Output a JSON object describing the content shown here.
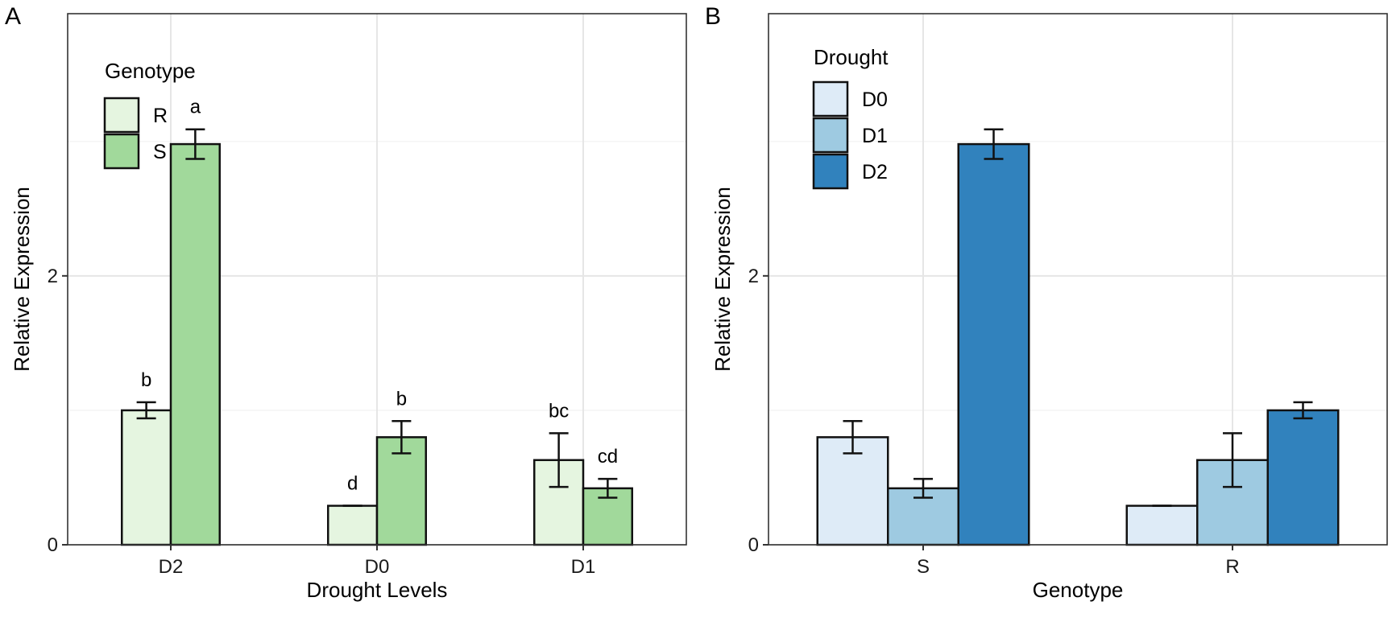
{
  "chart_data": [
    {
      "panel": "A",
      "type": "bar",
      "xlabel": "Drought Levels",
      "ylabel": "Relative Expression",
      "categories": [
        "D2",
        "D0",
        "D1"
      ],
      "ylim": [
        0,
        3.95
      ],
      "yticks": [
        0,
        2
      ],
      "grid": true,
      "legend": {
        "title": "Genotype",
        "position": "top-left"
      },
      "series": [
        {
          "name": "R",
          "color": "#e5f5e0",
          "values": [
            1.0,
            0.29,
            0.63
          ],
          "errors": [
            0.06,
            0.0,
            0.2
          ],
          "labels": [
            "b",
            "d",
            "bc"
          ]
        },
        {
          "name": "S",
          "color": "#a1d99b",
          "values": [
            2.98,
            0.8,
            0.42
          ],
          "errors": [
            0.11,
            0.12,
            0.07
          ],
          "labels": [
            "a",
            "b",
            "cd"
          ]
        }
      ]
    },
    {
      "panel": "B",
      "type": "bar",
      "xlabel": "Genotype",
      "ylabel": "Relative Expression",
      "categories": [
        "S",
        "R"
      ],
      "ylim": [
        0,
        3.95
      ],
      "yticks": [
        0,
        2
      ],
      "grid": true,
      "legend": {
        "title": "Drought",
        "position": "top-left"
      },
      "series": [
        {
          "name": "D0",
          "color": "#deebf7",
          "values": [
            0.8,
            0.29
          ],
          "errors": [
            0.12,
            0.0
          ]
        },
        {
          "name": "D1",
          "color": "#9ecae1",
          "values": [
            0.42,
            0.63
          ],
          "errors": [
            0.07,
            0.2
          ]
        },
        {
          "name": "D2",
          "color": "#3182bd",
          "values": [
            2.98,
            1.0
          ],
          "errors": [
            0.11,
            0.06
          ]
        }
      ]
    }
  ]
}
